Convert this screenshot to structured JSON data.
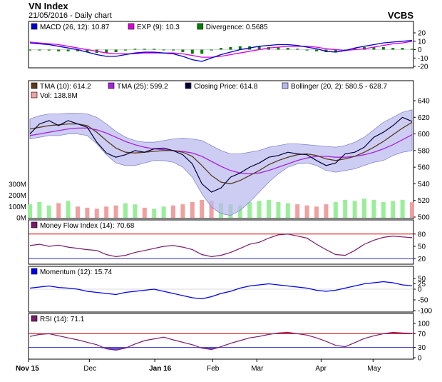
{
  "header": {
    "title": "VN Index",
    "subtitle": "21/05/2016 - Daily chart",
    "source": "VCBS"
  },
  "colors": {
    "macd": "#0000cc",
    "exp": "#dd00dd",
    "divergence": "#008000",
    "tma10": "#5a3a1a",
    "tma25": "#aa22dd",
    "close": "#000033",
    "bollinger": "#b8b8f0",
    "vol_up": "#99ee99",
    "vol_down": "#f0a0a0",
    "mfi": "#7a1a6a",
    "momentum": "#0000ee",
    "rsi": "#7a1a6a",
    "ref_line": "#dd0000",
    "ref_line2": "#3333cc"
  },
  "chart_data": [
    {
      "type": "line",
      "panel": "macd",
      "legend": [
        {
          "key": "macd",
          "text": "MACD (26, 12): 10.87"
        },
        {
          "key": "exp",
          "text": "EXP (9): 10.3"
        },
        {
          "key": "divergence",
          "text": "Divergence: 0.5685"
        }
      ],
      "ylim": [
        -20,
        20
      ],
      "ticks": [
        "20",
        "10",
        "0",
        "-10",
        "-20"
      ],
      "series": [
        {
          "name": "MACD (26, 12)",
          "values": [
            8,
            7,
            6,
            4,
            2,
            0,
            -3,
            -6,
            -8,
            -8,
            -6,
            -4,
            -3,
            -3,
            -4,
            -5,
            -8,
            -12,
            -14,
            -10,
            -6,
            -3,
            0,
            2,
            4,
            5,
            6,
            6,
            5,
            3,
            1,
            -2,
            -3,
            -1,
            2,
            4,
            6,
            8,
            9,
            10,
            11
          ]
        },
        {
          "name": "EXP (9)",
          "values": [
            9,
            8,
            7,
            6,
            4,
            2,
            0,
            -2,
            -4,
            -5,
            -5,
            -5,
            -4,
            -4,
            -4,
            -4,
            -5,
            -7,
            -9,
            -9,
            -8,
            -6,
            -4,
            -2,
            0,
            2,
            3,
            4,
            4,
            4,
            3,
            1,
            0,
            -1,
            0,
            1,
            3,
            5,
            7,
            8,
            10
          ]
        },
        {
          "name": "Divergence",
          "values": [
            -1,
            -1,
            -1,
            -2,
            -2,
            -2,
            -3,
            -4,
            -4,
            -3,
            -1,
            1,
            1,
            1,
            0,
            -1,
            -3,
            -5,
            -5,
            -1,
            2,
            3,
            4,
            4,
            4,
            3,
            3,
            2,
            1,
            -1,
            -2,
            -3,
            -3,
            0,
            2,
            3,
            3,
            3,
            2,
            2,
            1
          ]
        }
      ]
    },
    {
      "type": "line",
      "panel": "price",
      "legend": [
        {
          "key": "tma10",
          "text": "TMA (10): 614.2"
        },
        {
          "key": "tma25",
          "text": "TMA (25): 599.2"
        },
        {
          "key": "close",
          "text": "Closing Price: 614.8"
        },
        {
          "key": "bollinger",
          "text": "Bollinger (20, 2): 580.5 - 628.7"
        },
        {
          "key": "vol_down",
          "text": "Vol: 138.8M"
        }
      ],
      "ylim": [
        500,
        640
      ],
      "ticks": [
        "640",
        "620",
        "600",
        "580",
        "560",
        "540",
        "520",
        "500"
      ],
      "vol_ticks": [
        "300M",
        "200M",
        "100M",
        "0M"
      ],
      "xticks": [
        "Nov 15",
        "Dec",
        "Jan 16",
        "Feb",
        "Mar",
        "Apr",
        "May"
      ],
      "series": [
        {
          "name": "Closing Price",
          "values": [
            600,
            612,
            616,
            610,
            616,
            612,
            608,
            590,
            577,
            572,
            575,
            580,
            578,
            582,
            583,
            580,
            575,
            564,
            540,
            530,
            535,
            548,
            553,
            560,
            565,
            572,
            574,
            578,
            576,
            575,
            568,
            562,
            565,
            576,
            578,
            584,
            596,
            602,
            610,
            620,
            615
          ]
        },
        {
          "name": "TMA (10)",
          "values": [
            606,
            608,
            610,
            611,
            612,
            612,
            610,
            602,
            592,
            583,
            578,
            577,
            578,
            579,
            580,
            580,
            578,
            573,
            562,
            550,
            542,
            540,
            544,
            550,
            556,
            563,
            568,
            572,
            575,
            576,
            574,
            570,
            568,
            570,
            573,
            578,
            584,
            591,
            599,
            607,
            614
          ]
        },
        {
          "name": "TMA (25)",
          "values": [
            598,
            600,
            602,
            604,
            606,
            607,
            607,
            605,
            601,
            596,
            591,
            587,
            584,
            582,
            581,
            580,
            579,
            577,
            573,
            567,
            561,
            556,
            553,
            552,
            553,
            556,
            560,
            564,
            568,
            571,
            573,
            573,
            572,
            572,
            573,
            575,
            578,
            582,
            587,
            593,
            599
          ]
        },
        {
          "name": "Bollinger upper",
          "values": [
            618,
            622,
            624,
            624,
            625,
            625,
            624,
            620,
            612,
            603,
            596,
            592,
            590,
            590,
            592,
            594,
            595,
            594,
            592,
            586,
            580,
            576,
            576,
            578,
            580,
            584,
            586,
            588,
            588,
            587,
            586,
            585,
            584,
            586,
            590,
            596,
            605,
            614,
            620,
            626,
            629
          ]
        },
        {
          "name": "Bollinger lower",
          "values": [
            594,
            596,
            598,
            598,
            600,
            600,
            598,
            588,
            575,
            565,
            562,
            562,
            565,
            568,
            568,
            566,
            560,
            548,
            528,
            512,
            504,
            502,
            508,
            518,
            530,
            542,
            552,
            560,
            564,
            565,
            562,
            556,
            554,
            556,
            558,
            562,
            566,
            568,
            574,
            578,
            580
          ]
        },
        {
          "name": "Vol",
          "values": [
            120,
            140,
            110,
            130,
            150,
            100,
            90,
            80,
            100,
            110,
            130,
            120,
            90,
            80,
            100,
            110,
            120,
            140,
            160,
            150,
            130,
            120,
            110,
            140,
            150,
            160,
            140,
            130,
            120,
            110,
            100,
            120,
            140,
            160,
            150,
            170,
            160,
            140,
            150,
            160,
            139
          ]
        }
      ]
    },
    {
      "type": "line",
      "panel": "mfi",
      "legend": [
        {
          "key": "mfi",
          "text": "Money Flow Index (14): 70.68"
        }
      ],
      "ylim": [
        10,
        90
      ],
      "ticks": [
        "80",
        "50",
        "20"
      ],
      "series": [
        {
          "name": "Money Flow Index (14)",
          "values": [
            52,
            55,
            50,
            53,
            48,
            45,
            42,
            40,
            30,
            25,
            28,
            35,
            40,
            45,
            50,
            52,
            48,
            42,
            30,
            25,
            28,
            35,
            45,
            55,
            60,
            70,
            78,
            80,
            75,
            70,
            55,
            42,
            30,
            28,
            40,
            55,
            65,
            72,
            75,
            73,
            71
          ]
        }
      ]
    },
    {
      "type": "line",
      "panel": "momentum",
      "legend": [
        {
          "key": "momentum",
          "text": "Momentum (12): 15.74"
        }
      ],
      "ylim": [
        -100,
        60
      ],
      "ticks": [
        "50",
        "25",
        "0",
        "-50",
        "-100"
      ],
      "series": [
        {
          "name": "Momentum (12)",
          "values": [
            5,
            10,
            15,
            8,
            5,
            0,
            -10,
            -15,
            -20,
            -25,
            -15,
            -10,
            -5,
            0,
            -10,
            -20,
            -30,
            -40,
            -45,
            -35,
            -20,
            -10,
            5,
            15,
            20,
            25,
            20,
            15,
            10,
            5,
            -5,
            -10,
            -5,
            5,
            15,
            25,
            30,
            35,
            30,
            20,
            16
          ]
        }
      ]
    },
    {
      "type": "area",
      "panel": "rsi",
      "legend": [
        {
          "key": "rsi",
          "text": "RSI (14): 71.1"
        }
      ],
      "ylim": [
        0,
        100
      ],
      "ticks": [
        "100",
        "70",
        "30",
        "0"
      ],
      "series": [
        {
          "name": "RSI (14)",
          "values": [
            62,
            68,
            70,
            64,
            58,
            52,
            45,
            38,
            26,
            22,
            28,
            40,
            50,
            55,
            60,
            52,
            45,
            38,
            28,
            24,
            32,
            42,
            50,
            58,
            62,
            68,
            72,
            74,
            70,
            66,
            58,
            48,
            36,
            32,
            44,
            56,
            64,
            70,
            74,
            72,
            71
          ]
        }
      ]
    }
  ]
}
